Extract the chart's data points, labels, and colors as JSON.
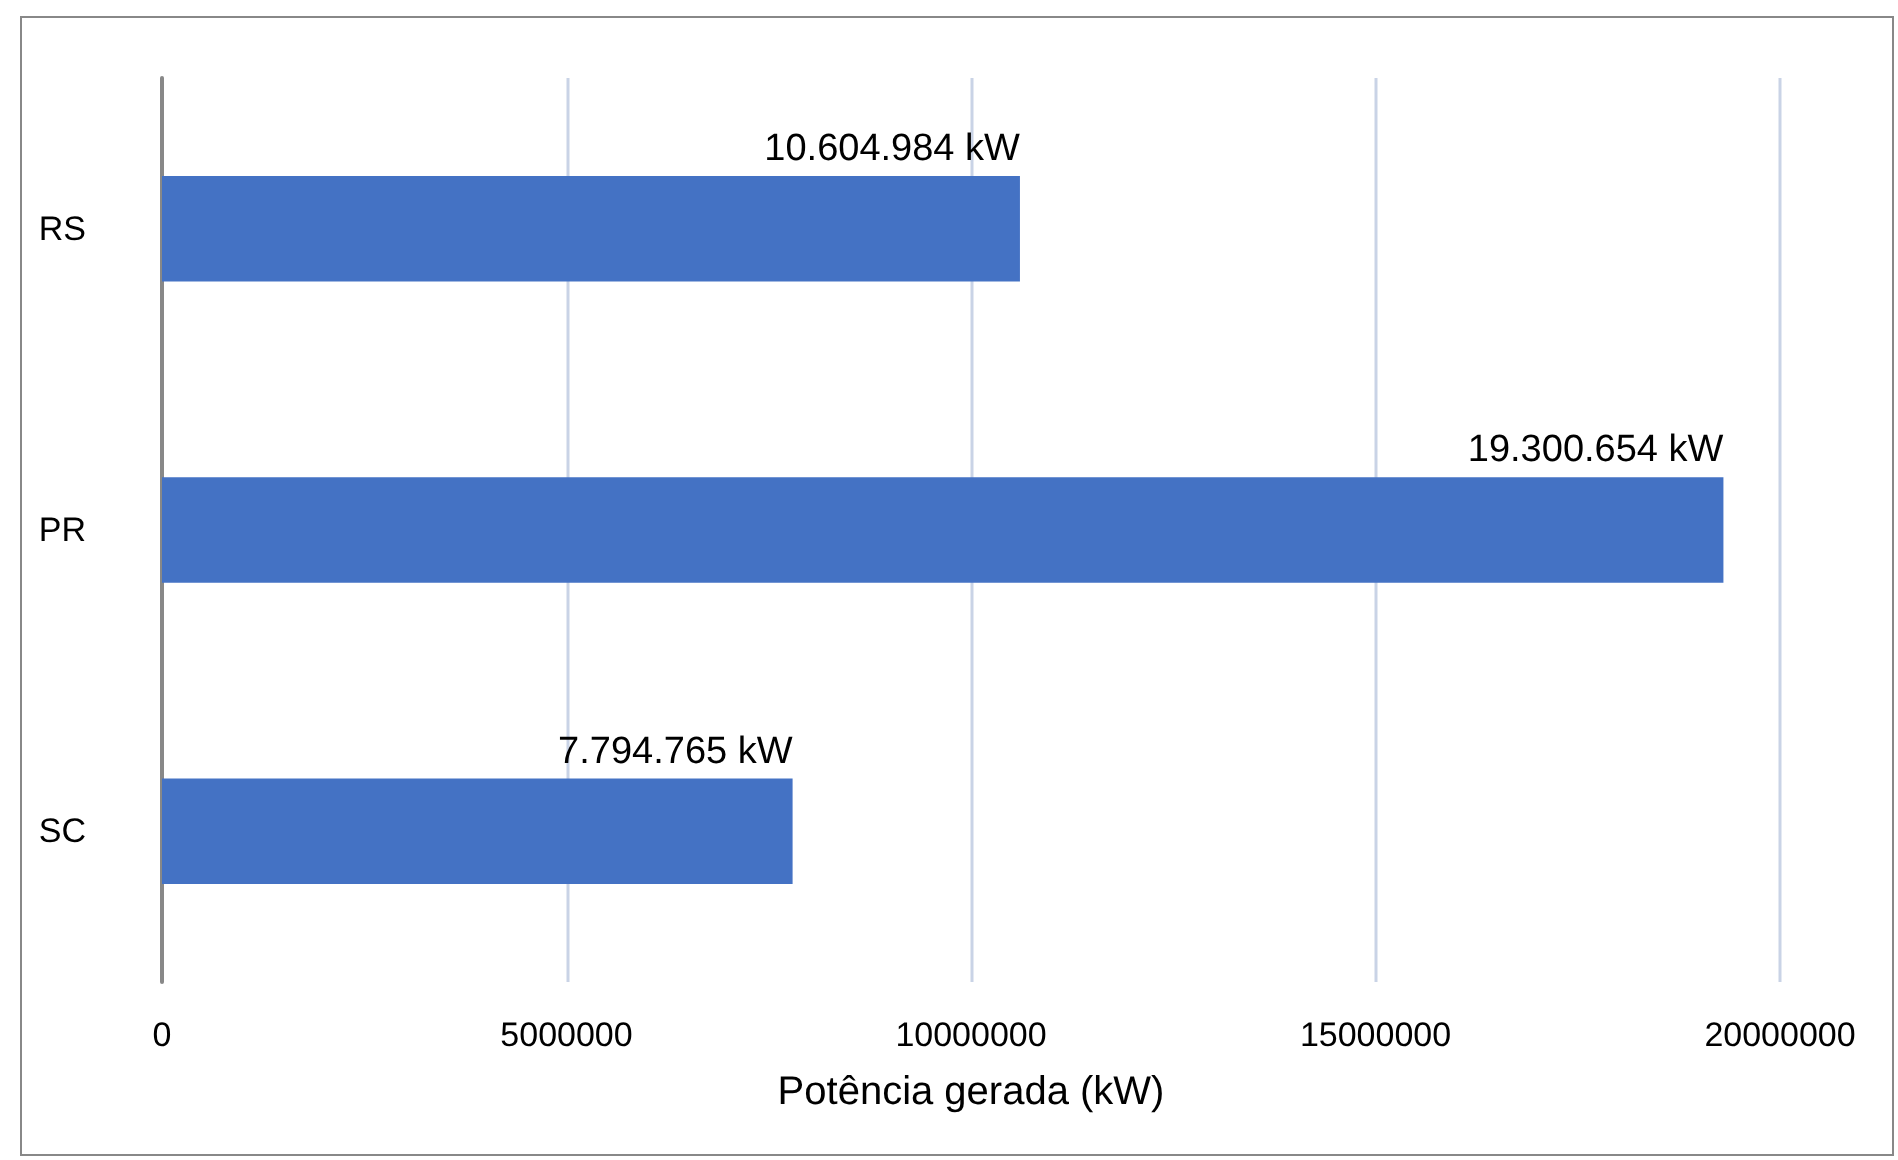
{
  "chart_data": {
    "type": "bar",
    "orientation": "horizontal",
    "xlabel": "Potência gerada (kW)",
    "categories": [
      "RS",
      "PR",
      "SC"
    ],
    "values": [
      10604984,
      19300654,
      7794765
    ],
    "color": "#4472c4",
    "value_labels": [
      "10.604.984 kW",
      "19.300.654 kW",
      "7.794.765 kW"
    ],
    "xlim": [
      0,
      20000000
    ],
    "xticks": [
      0,
      5000000,
      10000000,
      15000000,
      20000000
    ],
    "grid": "x"
  }
}
